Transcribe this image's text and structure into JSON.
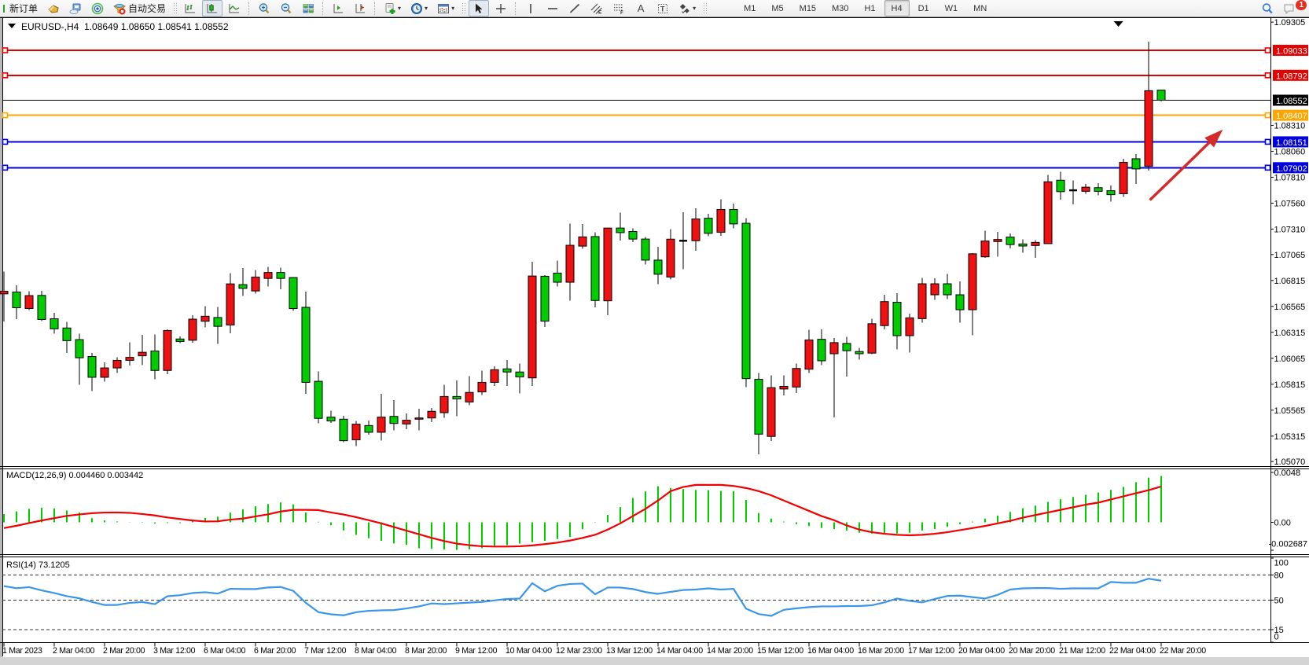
{
  "toolbar": {
    "new_order_label": "新订单",
    "auto_trading_label": "自动交易",
    "timeframes": [
      "M1",
      "M5",
      "M15",
      "M30",
      "H1",
      "H4",
      "D1",
      "W1",
      "MN"
    ],
    "selected_timeframe": "H4",
    "text_tool_label": "A",
    "notification_badge": "1"
  },
  "chart": {
    "symbol_header": {
      "expander": "▼",
      "symbol": "EURUSD-,H4",
      "ohlc": "1.08649 1.08650 1.08541 1.08552"
    }
  },
  "chart_data": {
    "type": "candlestick",
    "title": "EURUSD-,H4",
    "x_labels": [
      "1 Mar 2023",
      "2 Mar 04:00",
      "2 Mar 20:00",
      "3 Mar 12:00",
      "6 Mar 04:00",
      "6 Mar 20:00",
      "7 Mar 12:00",
      "8 Mar 04:00",
      "8 Mar 20:00",
      "9 Mar 12:00",
      "10 Mar 04:00",
      "12 Mar 23:00",
      "13 Mar 12:00",
      "14 Mar 04:00",
      "14 Mar 20:00",
      "15 Mar 12:00",
      "16 Mar 04:00",
      "16 Mar 20:00",
      "17 Mar 12:00",
      "20 Mar 04:00",
      "20 Mar 20:00",
      "21 Mar 12:00",
      "22 Mar 04:00",
      "22 Mar 20:00"
    ],
    "bars_per_x_label": 4,
    "candles_ohlc": [
      [
        1.06711,
        1.06902,
        1.0642,
        1.06686
      ],
      [
        1.06552,
        1.06767,
        1.06443,
        1.06704
      ],
      [
        1.06669,
        1.06712,
        1.06529,
        1.06545
      ],
      [
        1.06439,
        1.06716,
        1.06423,
        1.06671
      ],
      [
        1.06349,
        1.06502,
        1.06301,
        1.06446
      ],
      [
        1.06235,
        1.06417,
        1.06118,
        1.06357
      ],
      [
        1.0607,
        1.06301,
        1.05809,
        1.06245
      ],
      [
        1.05882,
        1.06118,
        1.05748,
        1.06082
      ],
      [
        1.05972,
        1.06026,
        1.05839,
        1.05882
      ],
      [
        1.06045,
        1.06074,
        1.05923,
        1.05972
      ],
      [
        1.06074,
        1.0622,
        1.05996,
        1.06045
      ],
      [
        1.06123,
        1.06289,
        1.06001,
        1.06089
      ],
      [
        1.05948,
        1.06295,
        1.05863,
        1.06135
      ],
      [
        1.06333,
        1.06344,
        1.05911,
        1.05948
      ],
      [
        1.06227,
        1.06276,
        1.06211,
        1.06251
      ],
      [
        1.06442,
        1.06482,
        1.06215,
        1.06239
      ],
      [
        1.0647,
        1.06568,
        1.06361,
        1.06422
      ],
      [
        1.06373,
        1.06561,
        1.06203,
        1.06458
      ],
      [
        1.06782,
        1.06884,
        1.06305,
        1.06386
      ],
      [
        1.06739,
        1.06933,
        1.06665,
        1.06775
      ],
      [
        1.06848,
        1.06916,
        1.06689,
        1.06714
      ],
      [
        1.06892,
        1.06945,
        1.06755,
        1.06835
      ],
      [
        1.06835,
        1.06938,
        1.06731,
        1.06892
      ],
      [
        1.06544,
        1.06848,
        1.0652,
        1.06843
      ],
      [
        1.05833,
        1.06707,
        1.05721,
        1.06556
      ],
      [
        1.05486,
        1.0594,
        1.05437,
        1.05843
      ],
      [
        1.05461,
        1.05558,
        1.05442,
        1.05498
      ],
      [
        1.05271,
        1.0551,
        1.05255,
        1.05478
      ],
      [
        1.0543,
        1.05461,
        1.05218,
        1.05279
      ],
      [
        1.05352,
        1.05466,
        1.05327,
        1.05417
      ],
      [
        1.05498,
        1.05724,
        1.05271,
        1.05352
      ],
      [
        1.05437,
        1.05661,
        1.05369,
        1.05505
      ],
      [
        1.05468,
        1.05534,
        1.05383,
        1.05432
      ],
      [
        1.0549,
        1.05578,
        1.05369,
        1.05478
      ],
      [
        1.05554,
        1.05588,
        1.05449,
        1.0549
      ],
      [
        1.05697,
        1.05809,
        1.0549,
        1.05541
      ],
      [
        1.05673,
        1.05851,
        1.05505,
        1.05697
      ],
      [
        1.05736,
        1.05894,
        1.05612,
        1.05644
      ],
      [
        1.05833,
        1.05948,
        1.05712,
        1.05741
      ],
      [
        1.05955,
        1.05988,
        1.05798,
        1.05833
      ],
      [
        1.05933,
        1.06049,
        1.05798,
        1.05963
      ],
      [
        1.05885,
        1.06014,
        1.05726,
        1.05933
      ],
      [
        1.06858,
        1.06994,
        1.05798,
        1.05876
      ],
      [
        1.06423,
        1.06867,
        1.06368,
        1.06856
      ],
      [
        1.06798,
        1.07008,
        1.06757,
        1.06886
      ],
      [
        1.07154,
        1.07361,
        1.06622,
        1.06798
      ],
      [
        1.07235,
        1.07357,
        1.07122,
        1.07146
      ],
      [
        1.06622,
        1.07279,
        1.06557,
        1.07238
      ],
      [
        1.0732,
        1.0732,
        1.06481,
        1.06619
      ],
      [
        1.07276,
        1.0747,
        1.07199,
        1.0732
      ],
      [
        1.07214,
        1.07316,
        1.07186,
        1.07287
      ],
      [
        1.07011,
        1.07235,
        1.06967,
        1.07214
      ],
      [
        1.06875,
        1.07141,
        1.06781,
        1.07011
      ],
      [
        1.07213,
        1.07311,
        1.06825,
        1.06848
      ],
      [
        1.07207,
        1.07473,
        1.06922,
        1.07188
      ],
      [
        1.07408,
        1.07512,
        1.07101,
        1.07198
      ],
      [
        1.07269,
        1.07457,
        1.0724,
        1.07415
      ],
      [
        1.07499,
        1.07596,
        1.07246,
        1.07279
      ],
      [
        1.0736,
        1.07554,
        1.07317,
        1.07499
      ],
      [
        1.05869,
        1.07415,
        1.05788,
        1.07366
      ],
      [
        1.05334,
        1.05924,
        1.0514,
        1.05863
      ],
      [
        1.05782,
        1.05901,
        1.0527,
        1.05312
      ],
      [
        1.05795,
        1.05901,
        1.05708,
        1.05769
      ],
      [
        1.05967,
        1.06015,
        1.0573,
        1.05788
      ],
      [
        1.06242,
        1.06339,
        1.05924,
        1.0596
      ],
      [
        1.06041,
        1.06345,
        1.05998,
        1.06248
      ],
      [
        1.06216,
        1.06259,
        1.05495,
        1.06109
      ],
      [
        1.06138,
        1.06273,
        1.0589,
        1.06208
      ],
      [
        1.06109,
        1.06167,
        1.06051,
        1.0613
      ],
      [
        1.06398,
        1.06446,
        1.06107,
        1.06115
      ],
      [
        1.06611,
        1.06677,
        1.06345,
        1.0638
      ],
      [
        1.06283,
        1.06692,
        1.0615,
        1.06605
      ],
      [
        1.06455,
        1.06495,
        1.06121,
        1.06283
      ],
      [
        1.06783,
        1.06841,
        1.06409,
        1.06447
      ],
      [
        1.06783,
        1.06835,
        1.06628,
        1.06677
      ],
      [
        1.06677,
        1.06879,
        1.06634,
        1.06783
      ],
      [
        1.06533,
        1.06807,
        1.06409,
        1.06677
      ],
      [
        1.07072,
        1.0708,
        1.06288,
        1.06533
      ],
      [
        1.07195,
        1.07296,
        1.07032,
        1.07043
      ],
      [
        1.0721,
        1.07285,
        1.07046,
        1.0719
      ],
      [
        1.07161,
        1.07268,
        1.07123,
        1.07233
      ],
      [
        1.07147,
        1.0721,
        1.07083,
        1.07167
      ],
      [
        1.07182,
        1.07204,
        1.07032,
        1.07152
      ],
      [
        1.07766,
        1.07832,
        1.07166,
        1.0717
      ],
      [
        1.07671,
        1.07861,
        1.07593,
        1.07781
      ],
      [
        1.07694,
        1.07781,
        1.0755,
        1.07674
      ],
      [
        1.07714,
        1.07746,
        1.07651,
        1.07674
      ],
      [
        1.07674,
        1.07752,
        1.07636,
        1.07709
      ],
      [
        1.07642,
        1.07729,
        1.07573,
        1.0768
      ],
      [
        1.07954,
        1.07988,
        1.07622,
        1.07651
      ],
      [
        1.0789,
        1.08034,
        1.07746,
        1.07988
      ],
      [
        1.08644,
        1.09116,
        1.07874,
        1.07916
      ],
      [
        1.08649,
        1.0865,
        1.08541,
        1.08552
      ]
    ],
    "candle_colors": "rgrgggggrrrrgrgrrgrgrrggggggrgrgrrrrgrrrggrggrrgrggggrdrgrgggrrrrgrggrrgrrrggrrrggrrgdrggrgrg",
    "bull_color": "#00cc00",
    "bear_color": "#ee1111",
    "wick_color": "#000000",
    "price_axis_ticks": [
      "1.09305",
      "1.08310",
      "1.08060",
      "1.07810",
      "1.07560",
      "1.07310",
      "1.07065",
      "1.06815",
      "1.06565",
      "1.06315",
      "1.06065",
      "1.05815",
      "1.05565",
      "1.05315",
      "1.05070"
    ],
    "price_lines": [
      {
        "price": 1.09033,
        "label": "1.09033",
        "color": "#e60000"
      },
      {
        "price": 1.08792,
        "label": "1.08792",
        "color": "#e60000"
      },
      {
        "price": 1.08407,
        "label": "1.08407",
        "color": "#ffa500"
      },
      {
        "price": 1.08151,
        "label": "1.08151",
        "color": "#0000e0"
      },
      {
        "price": 1.07902,
        "label": "1.07902",
        "color": "#0000e0"
      }
    ],
    "current_price_line": {
      "price": 1.08552,
      "label": "1.08552",
      "color": "#000000"
    },
    "indicators": [
      {
        "name": "MACD(12,26,9)",
        "values_label": "0.004460 0.003442",
        "axis_ticks": [
          "0.0048",
          "0.00",
          "-0.002687"
        ],
        "axis_tick_values": [
          0.0048,
          0.0,
          -0.002687
        ],
        "histogram": [
          0.00079,
          0.00105,
          0.0013,
          0.00141,
          0.00134,
          0.00113,
          0.00095,
          0.0004,
          0.00018,
          8e-05,
          2e-05,
          -4e-05,
          -0.00011,
          -7e-05,
          0.0,
          0.00025,
          0.00043,
          0.00054,
          0.00093,
          0.00125,
          0.00154,
          0.00176,
          0.00192,
          0.00173,
          0.00095,
          5e-05,
          -0.00028,
          -0.00078,
          -0.00121,
          -0.00153,
          -0.00178,
          -0.00203,
          -0.00216,
          -0.0025,
          -0.00255,
          -0.00262,
          -0.00265,
          -0.0026,
          -0.00248,
          -0.00235,
          -0.0022,
          -0.00205,
          -0.00191,
          -0.00178,
          -0.00161,
          -0.00141,
          -0.00066,
          -3e-05,
          0.00072,
          0.00147,
          0.00234,
          0.00297,
          0.00347,
          0.0033,
          0.0032,
          0.00312,
          0.0031,
          0.00302,
          0.003,
          0.00215,
          0.0009,
          0.00036,
          7e-05,
          -0.00018,
          -0.00036,
          -0.00054,
          -0.00065,
          -0.00079,
          -0.001,
          -0.00108,
          -0.00115,
          -0.00108,
          -0.001,
          -0.00079,
          -0.00065,
          -0.00043,
          -0.00018,
          7e-05,
          0.00036,
          0.00065,
          0.001,
          0.00136,
          0.00161,
          0.00197,
          0.00222,
          0.00244,
          0.00265,
          0.00287,
          0.00312,
          0.00341,
          0.00387,
          0.0043,
          0.00446
        ],
        "signal": [
          -0.00055,
          -0.00033,
          -7e-05,
          0.00018,
          0.0004,
          0.00062,
          0.00076,
          0.00088,
          0.00094,
          0.00095,
          0.00091,
          0.0008,
          0.00066,
          0.00047,
          0.00032,
          0.00018,
          8e-05,
          0.0001,
          0.00026,
          0.00036,
          0.00057,
          0.00077,
          0.00104,
          0.0012,
          0.0012,
          0.00118,
          0.00095,
          0.00075,
          0.0005,
          0.0002,
          -0.0001,
          -0.00045,
          -0.0008,
          -0.00115,
          -0.0015,
          -0.0018,
          -0.00205,
          -0.0022,
          -0.0023,
          -0.00233,
          -0.00233,
          -0.0023,
          -0.00222,
          -0.0021,
          -0.00195,
          -0.00175,
          -0.0015,
          -0.0012,
          -0.0007,
          -0.0001,
          0.0006,
          0.0013,
          0.0021,
          0.003,
          0.0034,
          0.0036,
          0.0036,
          0.0036,
          0.0035,
          0.0033,
          0.003,
          0.0026,
          0.0021,
          0.0016,
          0.0011,
          0.0006,
          0.0002,
          -0.0003,
          -0.0007,
          -0.00095,
          -0.0011,
          -0.0012,
          -0.00125,
          -0.0012,
          -0.0011,
          -0.00095,
          -0.00075,
          -0.00055,
          -0.00035,
          -0.0001,
          0.00015,
          0.00045,
          0.0007,
          0.00095,
          0.0012,
          0.00145,
          0.0017,
          0.0019,
          0.0022,
          0.0025,
          0.0028,
          0.0031,
          0.003442
        ],
        "histogram_color": "#00cc00",
        "signal_color": "#f20000"
      },
      {
        "name": "RSI(14)",
        "values_label": "73.1205",
        "axis_ticks": [
          "100",
          "80",
          "50",
          "15",
          "0"
        ],
        "axis_tick_values": [
          100,
          80,
          50,
          15,
          0
        ],
        "levels": [
          80,
          50,
          15
        ],
        "values": [
          66.7,
          64.2,
          65.5,
          61.6,
          58.5,
          54.7,
          52.2,
          47.8,
          44.3,
          44.3,
          46.8,
          47.8,
          45.3,
          54.7,
          55.9,
          58.5,
          59.4,
          57.8,
          63.5,
          63.2,
          63.2,
          65.1,
          65.7,
          61.0,
          46.8,
          35.7,
          33.2,
          32.0,
          35.7,
          37.3,
          37.9,
          38.2,
          40.1,
          42.6,
          46.1,
          45.3,
          46.2,
          47.1,
          47.9,
          49.7,
          51.4,
          51.9,
          70.2,
          60.5,
          67.1,
          69.2,
          69.7,
          57.0,
          65.0,
          65.0,
          63.2,
          59.6,
          57.5,
          59.9,
          62.0,
          62.6,
          64.0,
          62.6,
          63.5,
          39.8,
          33.5,
          31.3,
          38.5,
          40.3,
          41.7,
          42.6,
          42.6,
          43.0,
          43.0,
          43.9,
          47.4,
          51.9,
          49.2,
          47.4,
          51.4,
          55.0,
          55.4,
          53.6,
          51.9,
          56.3,
          62.6,
          64.0,
          64.4,
          64.4,
          63.5,
          64.0,
          64.0,
          64.0,
          71.6,
          70.7,
          70.7,
          75.5,
          73.12
        ],
        "line_color": "#3a96e8"
      }
    ],
    "annotations": {
      "trend_arrow": {
        "from_bar": 91.1,
        "from_price": 1.0759,
        "to_bar": 96.9,
        "to_price": 1.0827,
        "color": "#d32a2a"
      },
      "shift_marker_bar": 88.6
    }
  }
}
